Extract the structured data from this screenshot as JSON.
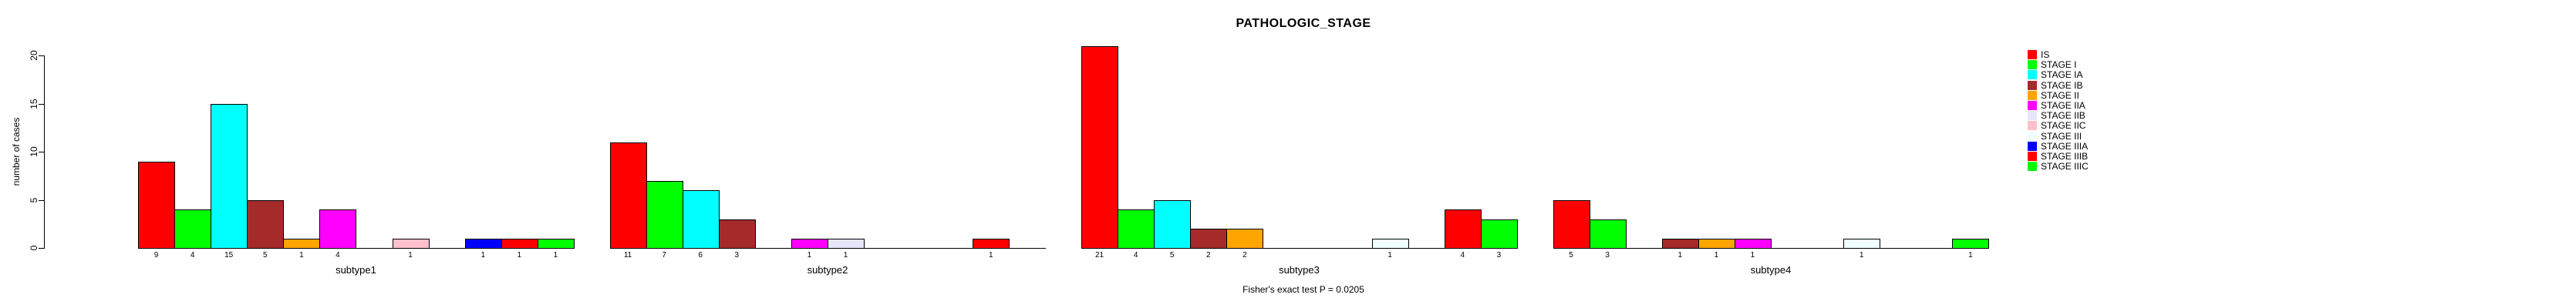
{
  "title": "PATHOLOGIC_STAGE",
  "caption": "Fisher's exact test P = 0.0205",
  "y_axis": {
    "label": "number of cases",
    "ticks": [
      0,
      5,
      10,
      15,
      20
    ]
  },
  "legend": {
    "position": "topright"
  },
  "chart_data": {
    "type": "bar",
    "title": "PATHOLOGIC_STAGE",
    "xlabel": "",
    "ylabel": "number of cases",
    "ylim": [
      0,
      20
    ],
    "grid": false,
    "legend_position": "topright",
    "annotation": "each bar's count is printed below its base; Fisher's exact test P = 0.0205",
    "categories": [
      "subtype1",
      "subtype2",
      "subtype3",
      "subtype4"
    ],
    "series": [
      {
        "name": "IS",
        "color": "#FF0000",
        "values": [
          9,
          11,
          21,
          5
        ]
      },
      {
        "name": "STAGE I",
        "color": "#00FF00",
        "values": [
          4,
          7,
          4,
          3
        ]
      },
      {
        "name": "STAGE IA",
        "color": "#00FFFF",
        "values": [
          15,
          6,
          5,
          0
        ]
      },
      {
        "name": "STAGE IB",
        "color": "#A52A2A",
        "values": [
          5,
          3,
          2,
          1
        ]
      },
      {
        "name": "STAGE II",
        "color": "#FFA500",
        "values": [
          1,
          0,
          2,
          1
        ]
      },
      {
        "name": "STAGE IIA",
        "color": "#FF00FF",
        "values": [
          4,
          1,
          0,
          1
        ]
      },
      {
        "name": "STAGE IIB",
        "color": "#E6E6FA",
        "values": [
          0,
          1,
          0,
          0
        ]
      },
      {
        "name": "STAGE IIC",
        "color": "#FFC0CB",
        "values": [
          1,
          0,
          0,
          0
        ]
      },
      {
        "name": "STAGE III",
        "color": "#F0FFFF",
        "values": [
          0,
          0,
          1,
          1
        ]
      },
      {
        "name": "STAGE IIIA",
        "color": "#0000FF",
        "values": [
          1,
          0,
          0,
          0
        ]
      },
      {
        "name": "STAGE IIIB",
        "color": "#FF0000",
        "values": [
          1,
          1,
          4,
          0
        ]
      },
      {
        "name": "STAGE IIIC",
        "color": "#00FF00",
        "values": [
          1,
          0,
          3,
          1
        ]
      }
    ]
  }
}
